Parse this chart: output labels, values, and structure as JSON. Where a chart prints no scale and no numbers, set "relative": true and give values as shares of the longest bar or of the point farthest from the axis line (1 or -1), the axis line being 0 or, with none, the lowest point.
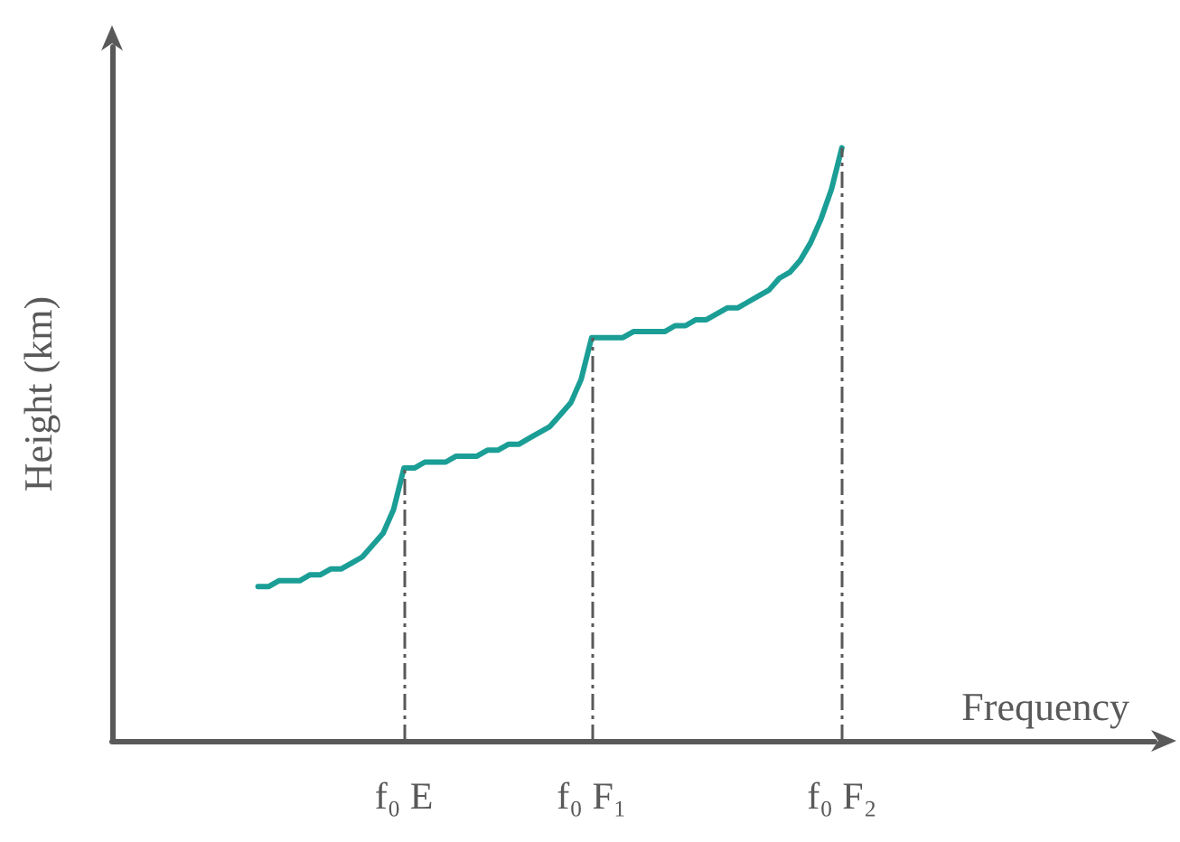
{
  "chart_data": {
    "type": "line",
    "relative": true,
    "xlabel": "Frequency",
    "ylabel": "Height (km)",
    "categories": [
      null,
      null,
      null,
      null,
      null,
      null,
      null,
      null,
      null,
      null,
      null,
      null,
      null,
      null,
      null,
      null,
      null,
      null,
      null,
      null,
      null,
      null,
      null,
      null,
      null,
      null,
      null,
      null,
      "f₀ E",
      null,
      null,
      null,
      null,
      null,
      null,
      null,
      null,
      null,
      null,
      null,
      null,
      null,
      null,
      null,
      null,
      null,
      "f₀ F₁",
      null,
      null,
      null,
      null,
      null,
      null,
      null,
      null,
      null,
      null,
      null,
      null,
      null,
      null,
      null,
      null,
      null,
      null,
      null,
      null,
      null,
      null,
      null,
      "f₀ F₂",
      null,
      null,
      null,
      null,
      null,
      null,
      null,
      null,
      null,
      null,
      null,
      null,
      null,
      null,
      null,
      null,
      null,
      null,
      null,
      null,
      null,
      null,
      null,
      null,
      null,
      null,
      null,
      null,
      null,
      null
    ],
    "series": [
      {
        "color": "#1a9e96",
        "values": [
          null,
          null,
          null,
          null,
          null,
          null,
          null,
          null,
          null,
          null,
          null,
          null,
          null,
          null,
          0.26,
          0.26,
          0.27,
          0.27,
          0.27,
          0.28,
          0.28,
          0.29,
          0.29,
          0.3,
          0.31,
          0.33,
          0.35,
          0.39,
          0.46,
          0.46,
          0.47,
          0.47,
          0.47,
          0.48,
          0.48,
          0.48,
          0.49,
          0.49,
          0.5,
          0.5,
          0.51,
          0.52,
          0.53,
          0.55,
          0.57,
          0.61,
          0.68,
          0.68,
          0.68,
          0.68,
          0.69,
          0.69,
          0.69,
          0.69,
          0.7,
          0.7,
          0.71,
          0.71,
          0.72,
          0.73,
          0.73,
          0.74,
          0.75,
          0.76,
          0.78,
          0.79,
          0.81,
          0.84,
          0.88,
          0.93,
          1.0,
          null,
          null,
          null,
          null,
          null,
          null,
          null,
          null,
          null,
          null,
          null,
          null,
          null,
          null,
          null,
          null,
          null,
          null,
          null,
          null,
          null,
          null,
          null,
          null,
          null,
          null,
          null,
          null,
          null,
          null
        ]
      }
    ],
    "ref_lines": [
      {
        "axis": "x",
        "value": "f₀ E",
        "color": "#595959",
        "line_style": "dashed"
      },
      {
        "axis": "x",
        "value": "f₀ F₁",
        "color": "#595959",
        "line_style": "dashed"
      },
      {
        "axis": "x",
        "value": "f₀ F₂",
        "color": "#595959",
        "line_style": "dashed"
      }
    ],
    "grid": false,
    "marker": "none",
    "line_style": "solid"
  }
}
